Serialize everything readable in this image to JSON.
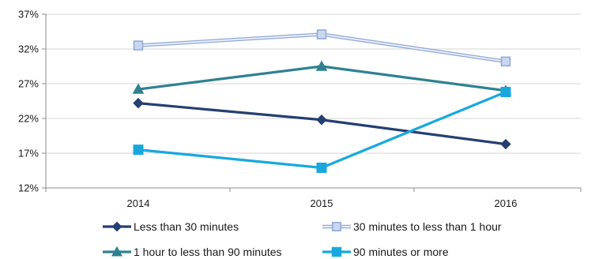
{
  "chart_data": {
    "type": "line",
    "categories": [
      "2014",
      "2015",
      "2016"
    ],
    "ylim": [
      12,
      37
    ],
    "yticks": [
      "12%",
      "17%",
      "22%",
      "27%",
      "32%",
      "37%"
    ],
    "ytick_values": [
      12,
      17,
      22,
      27,
      32,
      37
    ],
    "grid": true,
    "legend_placement": "bottom",
    "series": [
      {
        "name": "Less than 30 minutes",
        "values": [
          24.2,
          21.8,
          18.3
        ],
        "color": "#253f72",
        "marker": "diamond"
      },
      {
        "name": "30 minutes to less than 1 hour",
        "values": [
          32.5,
          34.1,
          30.2
        ],
        "color": "#a9bfe3",
        "marker": "square-outline"
      },
      {
        "name": "1 hour to less than 90 minutes",
        "values": [
          26.2,
          29.5,
          26.0
        ],
        "color": "#2f8190",
        "marker": "triangle"
      },
      {
        "name": "90 minutes or more",
        "values": [
          17.5,
          14.9,
          25.8
        ],
        "color": "#18a8de",
        "marker": "square"
      }
    ]
  }
}
